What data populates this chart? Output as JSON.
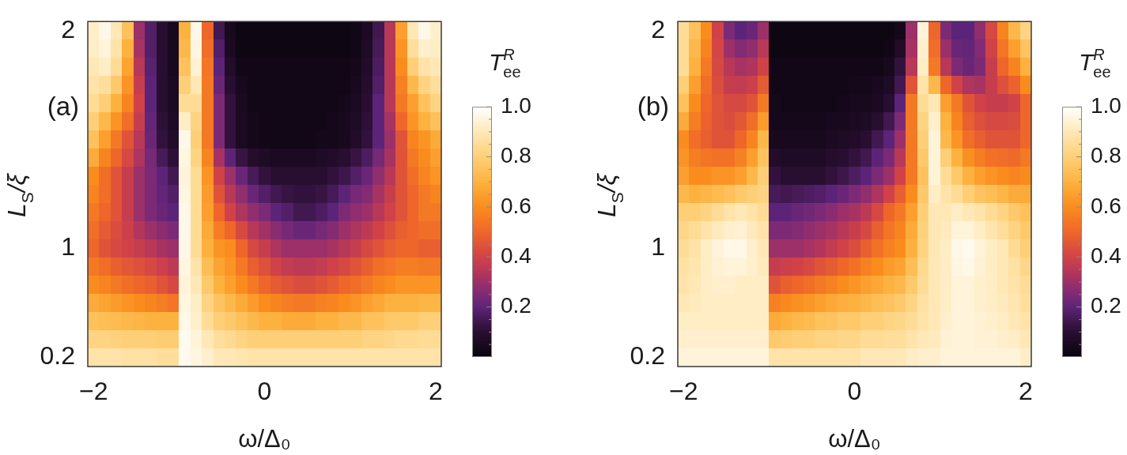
{
  "chart_data": [
    {
      "type": "heatmap",
      "xlabel": "ω/Δ₀",
      "ylabel": "L$_{S}$/ξ",
      "clabel": "T$^{R}$$_{ee}$",
      "annotations": [
        "(a)"
      ],
      "categories": [
        "−2",
        null,
        null,
        null,
        null,
        null,
        null,
        null,
        null,
        null,
        null,
        null,
        null,
        null,
        null,
        "0",
        null,
        null,
        null,
        null,
        null,
        null,
        null,
        null,
        null,
        null,
        null,
        null,
        null,
        null,
        "2"
      ],
      "y_categories": [
        "2",
        null,
        null,
        null,
        null,
        null,
        null,
        null,
        null,
        null,
        null,
        null,
        "1",
        null,
        null,
        null,
        null,
        null,
        "0.2"
      ],
      "clim": [
        0,
        1
      ],
      "cticks": [
        {
          "value": 0.05,
          "label": null
        },
        {
          "value": 0.1,
          "label": null
        },
        {
          "value": 0.15,
          "label": null
        },
        0.2,
        {
          "value": 0.25,
          "label": null
        },
        {
          "value": 0.3,
          "label": null
        },
        {
          "value": 0.35,
          "label": null
        },
        0.4,
        {
          "value": 0.45,
          "label": null
        },
        {
          "value": 0.5,
          "label": null
        },
        {
          "value": 0.55,
          "label": null
        },
        0.6,
        {
          "value": 0.65,
          "label": null
        },
        {
          "value": 0.7,
          "label": null
        },
        {
          "value": 0.75,
          "label": null
        },
        0.8,
        {
          "value": 0.85,
          "label": null
        },
        {
          "value": 0.9,
          "label": null
        },
        {
          "value": 0.95,
          "label": null
        },
        {
          "value": 1,
          "label": "1.0"
        }
      ],
      "cells": [
        [
          0.92,
          0.97,
          0.9,
          0.75,
          0.3,
          0.18,
          0.1,
          0.05,
          0.7,
          0.97,
          0.5,
          0.15,
          0.05,
          0.02,
          0.02,
          0.02,
          0.02,
          0.02,
          0.02,
          0.02,
          0.02,
          0.02,
          0.02,
          0.03,
          0.06,
          0.15,
          0.35,
          0.65,
          0.9,
          0.97,
          0.93
        ],
        [
          0.92,
          0.95,
          0.88,
          0.7,
          0.32,
          0.18,
          0.1,
          0.05,
          0.72,
          0.96,
          0.52,
          0.18,
          0.06,
          0.02,
          0.02,
          0.02,
          0.02,
          0.02,
          0.02,
          0.02,
          0.02,
          0.02,
          0.02,
          0.03,
          0.07,
          0.16,
          0.35,
          0.62,
          0.86,
          0.93,
          0.92
        ],
        [
          0.9,
          0.92,
          0.85,
          0.66,
          0.35,
          0.19,
          0.1,
          0.05,
          0.75,
          0.94,
          0.54,
          0.2,
          0.08,
          0.03,
          0.03,
          0.03,
          0.03,
          0.03,
          0.03,
          0.03,
          0.03,
          0.03,
          0.03,
          0.04,
          0.08,
          0.17,
          0.35,
          0.6,
          0.8,
          0.88,
          0.9
        ],
        [
          0.88,
          0.86,
          0.78,
          0.62,
          0.38,
          0.2,
          0.1,
          0.06,
          0.8,
          0.9,
          0.55,
          0.22,
          0.1,
          0.05,
          0.03,
          0.03,
          0.03,
          0.03,
          0.03,
          0.03,
          0.03,
          0.03,
          0.03,
          0.05,
          0.09,
          0.18,
          0.35,
          0.57,
          0.72,
          0.82,
          0.86
        ],
        [
          0.85,
          0.8,
          0.7,
          0.58,
          0.4,
          0.2,
          0.1,
          0.06,
          0.85,
          0.85,
          0.55,
          0.25,
          0.12,
          0.06,
          0.03,
          0.03,
          0.03,
          0.03,
          0.03,
          0.03,
          0.03,
          0.03,
          0.04,
          0.06,
          0.1,
          0.2,
          0.35,
          0.55,
          0.65,
          0.75,
          0.82
        ],
        [
          0.8,
          0.72,
          0.62,
          0.52,
          0.38,
          0.21,
          0.11,
          0.07,
          0.92,
          0.82,
          0.55,
          0.25,
          0.12,
          0.06,
          0.04,
          0.03,
          0.03,
          0.03,
          0.03,
          0.03,
          0.03,
          0.04,
          0.05,
          0.07,
          0.11,
          0.2,
          0.32,
          0.5,
          0.62,
          0.7,
          0.75
        ],
        [
          0.75,
          0.65,
          0.55,
          0.45,
          0.35,
          0.22,
          0.12,
          0.08,
          0.97,
          0.8,
          0.55,
          0.25,
          0.12,
          0.06,
          0.04,
          0.03,
          0.03,
          0.03,
          0.03,
          0.03,
          0.04,
          0.04,
          0.05,
          0.08,
          0.12,
          0.2,
          0.3,
          0.45,
          0.58,
          0.62,
          0.68
        ],
        [
          0.68,
          0.58,
          0.5,
          0.42,
          0.33,
          0.24,
          0.16,
          0.11,
          0.96,
          0.82,
          0.58,
          0.32,
          0.2,
          0.13,
          0.09,
          0.07,
          0.06,
          0.06,
          0.06,
          0.06,
          0.07,
          0.08,
          0.1,
          0.13,
          0.17,
          0.24,
          0.32,
          0.45,
          0.55,
          0.6,
          0.65
        ],
        [
          0.6,
          0.52,
          0.45,
          0.38,
          0.3,
          0.25,
          0.2,
          0.15,
          0.95,
          0.85,
          0.62,
          0.4,
          0.3,
          0.22,
          0.16,
          0.12,
          0.1,
          0.1,
          0.1,
          0.1,
          0.1,
          0.12,
          0.14,
          0.18,
          0.22,
          0.28,
          0.35,
          0.45,
          0.52,
          0.58,
          0.62
        ],
        [
          0.58,
          0.52,
          0.45,
          0.38,
          0.3,
          0.25,
          0.21,
          0.18,
          0.96,
          0.85,
          0.64,
          0.45,
          0.35,
          0.28,
          0.22,
          0.18,
          0.15,
          0.13,
          0.12,
          0.12,
          0.13,
          0.16,
          0.2,
          0.24,
          0.26,
          0.32,
          0.38,
          0.45,
          0.5,
          0.55,
          0.58
        ],
        [
          0.55,
          0.5,
          0.45,
          0.38,
          0.3,
          0.25,
          0.22,
          0.2,
          0.97,
          0.85,
          0.65,
          0.5,
          0.4,
          0.33,
          0.28,
          0.25,
          0.2,
          0.18,
          0.15,
          0.15,
          0.17,
          0.2,
          0.25,
          0.28,
          0.3,
          0.35,
          0.4,
          0.45,
          0.5,
          0.55,
          0.55
        ],
        [
          0.52,
          0.47,
          0.43,
          0.39,
          0.34,
          0.3,
          0.27,
          0.25,
          0.97,
          0.85,
          0.68,
          0.56,
          0.5,
          0.42,
          0.35,
          0.31,
          0.27,
          0.24,
          0.22,
          0.22,
          0.24,
          0.26,
          0.3,
          0.33,
          0.36,
          0.4,
          0.44,
          0.48,
          0.5,
          0.52,
          0.52
        ],
        [
          0.5,
          0.45,
          0.42,
          0.4,
          0.38,
          0.35,
          0.32,
          0.3,
          0.97,
          0.85,
          0.7,
          0.62,
          0.6,
          0.5,
          0.42,
          0.38,
          0.33,
          0.3,
          0.3,
          0.3,
          0.3,
          0.32,
          0.35,
          0.38,
          0.42,
          0.45,
          0.48,
          0.5,
          0.5,
          0.48,
          0.48
        ],
        [
          0.55,
          0.52,
          0.48,
          0.46,
          0.44,
          0.42,
          0.39,
          0.36,
          0.96,
          0.88,
          0.74,
          0.66,
          0.62,
          0.55,
          0.48,
          0.44,
          0.4,
          0.37,
          0.36,
          0.36,
          0.37,
          0.4,
          0.42,
          0.45,
          0.48,
          0.52,
          0.54,
          0.56,
          0.56,
          0.55,
          0.55
        ],
        [
          0.6,
          0.58,
          0.55,
          0.52,
          0.5,
          0.48,
          0.45,
          0.42,
          0.95,
          0.9,
          0.78,
          0.7,
          0.65,
          0.6,
          0.55,
          0.5,
          0.47,
          0.45,
          0.43,
          0.43,
          0.45,
          0.47,
          0.5,
          0.52,
          0.55,
          0.58,
          0.6,
          0.62,
          0.62,
          0.62,
          0.62
        ],
        [
          0.68,
          0.66,
          0.64,
          0.62,
          0.6,
          0.58,
          0.56,
          0.54,
          0.96,
          0.92,
          0.82,
          0.76,
          0.72,
          0.68,
          0.64,
          0.6,
          0.58,
          0.56,
          0.55,
          0.55,
          0.57,
          0.58,
          0.6,
          0.62,
          0.65,
          0.67,
          0.7,
          0.7,
          0.7,
          0.71,
          0.71
        ],
        [
          0.75,
          0.74,
          0.73,
          0.72,
          0.71,
          0.7,
          0.7,
          0.7,
          0.97,
          0.93,
          0.85,
          0.8,
          0.78,
          0.75,
          0.72,
          0.7,
          0.7,
          0.68,
          0.68,
          0.68,
          0.7,
          0.7,
          0.72,
          0.72,
          0.75,
          0.75,
          0.78,
          0.78,
          0.78,
          0.8,
          0.8
        ],
        [
          0.82,
          0.82,
          0.81,
          0.8,
          0.8,
          0.8,
          0.79,
          0.79,
          0.98,
          0.95,
          0.9,
          0.86,
          0.84,
          0.82,
          0.8,
          0.8,
          0.8,
          0.8,
          0.8,
          0.8,
          0.8,
          0.8,
          0.8,
          0.8,
          0.82,
          0.82,
          0.83,
          0.84,
          0.84,
          0.85,
          0.85
        ],
        [
          0.88,
          0.88,
          0.88,
          0.87,
          0.87,
          0.87,
          0.86,
          0.86,
          0.98,
          0.96,
          0.93,
          0.9,
          0.9,
          0.89,
          0.88,
          0.88,
          0.88,
          0.88,
          0.88,
          0.88,
          0.88,
          0.88,
          0.88,
          0.88,
          0.88,
          0.88,
          0.88,
          0.88,
          0.88,
          0.88,
          0.88
        ]
      ]
    },
    {
      "type": "heatmap",
      "xlabel": "ω/Δ₀",
      "ylabel": "L$_{S}$/ξ",
      "clabel": "T$^{R}$$_{ee}$",
      "annotations": [
        "(b)"
      ],
      "categories": [
        "−2",
        null,
        null,
        null,
        null,
        null,
        null,
        null,
        null,
        null,
        null,
        null,
        null,
        null,
        null,
        "0",
        null,
        null,
        null,
        null,
        null,
        null,
        null,
        null,
        null,
        null,
        null,
        null,
        null,
        null,
        "2"
      ],
      "y_categories": [
        "2",
        null,
        null,
        null,
        null,
        null,
        null,
        null,
        null,
        null,
        null,
        null,
        "1",
        null,
        null,
        null,
        null,
        null,
        "0.2"
      ],
      "clim": [
        0,
        1
      ],
      "cticks": [
        {
          "value": 0.05,
          "label": null
        },
        {
          "value": 0.1,
          "label": null
        },
        {
          "value": 0.15,
          "label": null
        },
        0.2,
        {
          "value": 0.25,
          "label": null
        },
        {
          "value": 0.3,
          "label": null
        },
        {
          "value": 0.35,
          "label": null
        },
        0.4,
        {
          "value": 0.45,
          "label": null
        },
        {
          "value": 0.5,
          "label": null
        },
        {
          "value": 0.55,
          "label": null
        },
        0.6,
        {
          "value": 0.65,
          "label": null
        },
        {
          "value": 0.7,
          "label": null
        },
        {
          "value": 0.75,
          "label": null
        },
        0.8,
        {
          "value": 0.85,
          "label": null
        },
        {
          "value": 0.9,
          "label": null
        },
        {
          "value": 0.95,
          "label": null
        },
        {
          "value": 1,
          "label": "1.0"
        }
      ],
      "cells": [
        [
          0.85,
          0.75,
          0.6,
          0.4,
          0.25,
          0.2,
          0.22,
          0.3,
          0.02,
          0.02,
          0.02,
          0.02,
          0.02,
          0.02,
          0.02,
          0.02,
          0.02,
          0.02,
          0.02,
          0.04,
          0.3,
          0.95,
          0.5,
          0.25,
          0.2,
          0.2,
          0.28,
          0.42,
          0.58,
          0.72,
          0.82
        ],
        [
          0.85,
          0.72,
          0.58,
          0.41,
          0.3,
          0.26,
          0.28,
          0.35,
          0.02,
          0.02,
          0.02,
          0.02,
          0.02,
          0.02,
          0.02,
          0.02,
          0.02,
          0.02,
          0.03,
          0.08,
          0.32,
          0.93,
          0.52,
          0.3,
          0.22,
          0.21,
          0.26,
          0.4,
          0.54,
          0.65,
          0.76
        ],
        [
          0.85,
          0.7,
          0.55,
          0.42,
          0.35,
          0.32,
          0.33,
          0.4,
          0.03,
          0.03,
          0.03,
          0.03,
          0.03,
          0.03,
          0.03,
          0.03,
          0.03,
          0.03,
          0.05,
          0.12,
          0.35,
          0.92,
          0.55,
          0.35,
          0.25,
          0.22,
          0.25,
          0.38,
          0.5,
          0.58,
          0.7
        ],
        [
          0.8,
          0.65,
          0.52,
          0.43,
          0.38,
          0.37,
          0.39,
          0.47,
          0.03,
          0.03,
          0.03,
          0.03,
          0.03,
          0.03,
          0.03,
          0.04,
          0.04,
          0.05,
          0.07,
          0.15,
          0.45,
          0.88,
          0.72,
          0.5,
          0.4,
          0.33,
          0.32,
          0.38,
          0.44,
          0.49,
          0.6
        ],
        [
          0.75,
          0.6,
          0.5,
          0.45,
          0.42,
          0.42,
          0.45,
          0.55,
          0.04,
          0.03,
          0.03,
          0.03,
          0.03,
          0.03,
          0.04,
          0.05,
          0.05,
          0.06,
          0.1,
          0.2,
          0.55,
          0.85,
          0.9,
          0.65,
          0.55,
          0.45,
          0.4,
          0.38,
          0.38,
          0.4,
          0.5
        ],
        [
          0.68,
          0.56,
          0.49,
          0.45,
          0.43,
          0.46,
          0.52,
          0.64,
          0.04,
          0.04,
          0.04,
          0.04,
          0.04,
          0.05,
          0.05,
          0.06,
          0.07,
          0.1,
          0.15,
          0.25,
          0.55,
          0.82,
          0.93,
          0.7,
          0.58,
          0.48,
          0.44,
          0.42,
          0.42,
          0.43,
          0.5
        ],
        [
          0.6,
          0.52,
          0.48,
          0.45,
          0.45,
          0.5,
          0.58,
          0.72,
          0.05,
          0.05,
          0.05,
          0.05,
          0.05,
          0.06,
          0.07,
          0.08,
          0.1,
          0.15,
          0.2,
          0.3,
          0.55,
          0.8,
          0.95,
          0.72,
          0.62,
          0.52,
          0.48,
          0.45,
          0.45,
          0.45,
          0.5
        ],
        [
          0.62,
          0.56,
          0.54,
          0.53,
          0.53,
          0.57,
          0.65,
          0.76,
          0.08,
          0.07,
          0.07,
          0.07,
          0.07,
          0.09,
          0.1,
          0.12,
          0.15,
          0.2,
          0.25,
          0.35,
          0.55,
          0.78,
          0.95,
          0.8,
          0.7,
          0.61,
          0.56,
          0.53,
          0.52,
          0.51,
          0.55
        ],
        [
          0.65,
          0.6,
          0.6,
          0.62,
          0.62,
          0.65,
          0.72,
          0.8,
          0.12,
          0.1,
          0.1,
          0.1,
          0.1,
          0.12,
          0.14,
          0.17,
          0.2,
          0.25,
          0.3,
          0.4,
          0.55,
          0.75,
          0.95,
          0.85,
          0.78,
          0.7,
          0.65,
          0.62,
          0.6,
          0.58,
          0.6
        ],
        [
          0.72,
          0.7,
          0.71,
          0.73,
          0.75,
          0.78,
          0.8,
          0.82,
          0.16,
          0.15,
          0.16,
          0.17,
          0.18,
          0.2,
          0.22,
          0.25,
          0.28,
          0.33,
          0.4,
          0.48,
          0.6,
          0.78,
          0.92,
          0.88,
          0.85,
          0.8,
          0.76,
          0.74,
          0.71,
          0.68,
          0.68
        ],
        [
          0.8,
          0.8,
          0.82,
          0.85,
          0.88,
          0.9,
          0.88,
          0.85,
          0.2,
          0.2,
          0.22,
          0.23,
          0.25,
          0.27,
          0.3,
          0.32,
          0.36,
          0.42,
          0.5,
          0.55,
          0.65,
          0.8,
          0.9,
          0.9,
          0.92,
          0.9,
          0.88,
          0.85,
          0.82,
          0.78,
          0.75
        ],
        [
          0.83,
          0.85,
          0.88,
          0.91,
          0.93,
          0.94,
          0.91,
          0.88,
          0.25,
          0.25,
          0.26,
          0.28,
          0.3,
          0.32,
          0.35,
          0.38,
          0.42,
          0.48,
          0.54,
          0.58,
          0.68,
          0.81,
          0.9,
          0.91,
          0.95,
          0.95,
          0.92,
          0.89,
          0.86,
          0.82,
          0.78
        ],
        [
          0.85,
          0.88,
          0.92,
          0.95,
          0.97,
          0.97,
          0.93,
          0.9,
          0.3,
          0.3,
          0.3,
          0.32,
          0.34,
          0.37,
          0.4,
          0.43,
          0.48,
          0.53,
          0.57,
          0.6,
          0.7,
          0.82,
          0.9,
          0.92,
          0.97,
          0.98,
          0.95,
          0.92,
          0.9,
          0.85,
          0.8
        ],
        [
          0.87,
          0.89,
          0.92,
          0.94,
          0.95,
          0.95,
          0.93,
          0.91,
          0.38,
          0.39,
          0.4,
          0.42,
          0.45,
          0.47,
          0.5,
          0.53,
          0.57,
          0.6,
          0.64,
          0.66,
          0.74,
          0.84,
          0.9,
          0.92,
          0.96,
          0.97,
          0.94,
          0.92,
          0.9,
          0.87,
          0.83
        ],
        [
          0.88,
          0.9,
          0.92,
          0.93,
          0.93,
          0.92,
          0.92,
          0.92,
          0.45,
          0.48,
          0.5,
          0.52,
          0.55,
          0.57,
          0.6,
          0.62,
          0.65,
          0.67,
          0.7,
          0.72,
          0.78,
          0.85,
          0.9,
          0.92,
          0.95,
          0.95,
          0.93,
          0.92,
          0.9,
          0.88,
          0.85
        ],
        [
          0.9,
          0.91,
          0.92,
          0.92,
          0.92,
          0.92,
          0.92,
          0.92,
          0.57,
          0.59,
          0.61,
          0.63,
          0.65,
          0.67,
          0.69,
          0.7,
          0.72,
          0.74,
          0.76,
          0.78,
          0.82,
          0.87,
          0.9,
          0.92,
          0.95,
          0.95,
          0.93,
          0.92,
          0.91,
          0.89,
          0.86
        ],
        [
          0.92,
          0.92,
          0.92,
          0.92,
          0.92,
          0.92,
          0.92,
          0.92,
          0.68,
          0.7,
          0.72,
          0.73,
          0.75,
          0.76,
          0.78,
          0.78,
          0.8,
          0.8,
          0.82,
          0.83,
          0.85,
          0.88,
          0.9,
          0.93,
          0.95,
          0.95,
          0.94,
          0.93,
          0.92,
          0.9,
          0.88
        ],
        [
          0.93,
          0.93,
          0.93,
          0.93,
          0.93,
          0.93,
          0.93,
          0.93,
          0.78,
          0.79,
          0.8,
          0.8,
          0.82,
          0.82,
          0.83,
          0.83,
          0.85,
          0.85,
          0.86,
          0.86,
          0.88,
          0.9,
          0.91,
          0.94,
          0.95,
          0.95,
          0.94,
          0.94,
          0.93,
          0.92,
          0.9
        ],
        [
          0.95,
          0.95,
          0.95,
          0.95,
          0.95,
          0.95,
          0.95,
          0.95,
          0.88,
          0.88,
          0.88,
          0.88,
          0.88,
          0.88,
          0.88,
          0.88,
          0.9,
          0.9,
          0.9,
          0.9,
          0.92,
          0.93,
          0.93,
          0.95,
          0.95,
          0.95,
          0.95,
          0.95,
          0.95,
          0.95,
          0.92
        ]
      ]
    }
  ]
}
